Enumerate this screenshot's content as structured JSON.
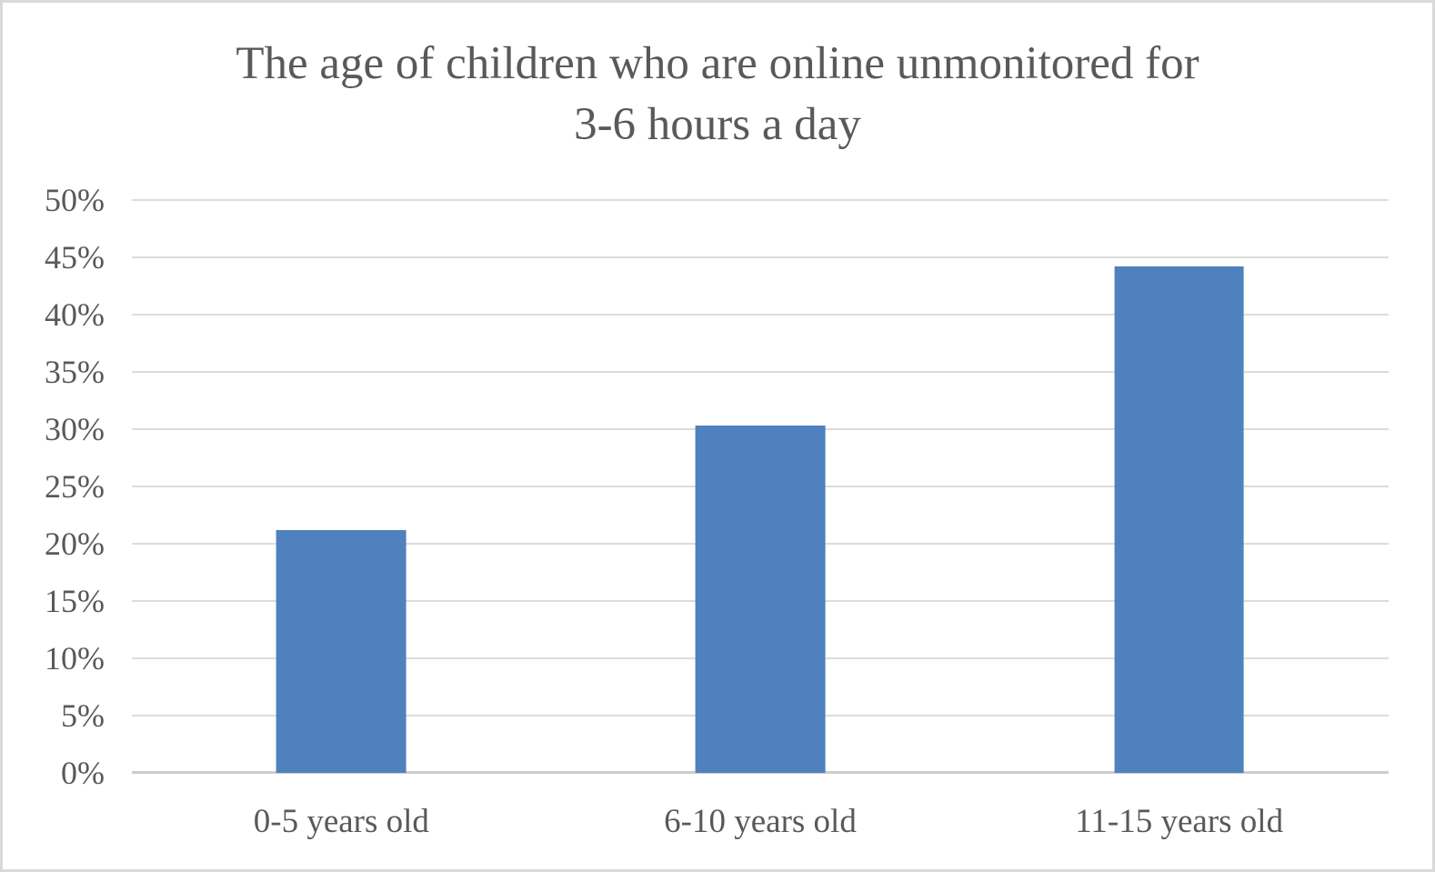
{
  "header": {
    "title_line1": "The age of children who are online unmonitored for",
    "title_line2": "3-6 hours a day"
  },
  "chart_data": {
    "type": "bar",
    "title": "The age of children who are online unmonitored for 3-6 hours a day",
    "categories": [
      "0-5 years old",
      "6-10 years old",
      "11-15 years old"
    ],
    "values": [
      21.2,
      30.3,
      44.2
    ],
    "xlabel": "",
    "ylabel": "",
    "ylim": [
      0,
      50
    ],
    "ytick_step": 5,
    "ytick_format": "{v}%",
    "ytick_labels": [
      "0%",
      "5%",
      "10%",
      "15%",
      "20%",
      "25%",
      "30%",
      "35%",
      "40%",
      "45%",
      "50%"
    ],
    "grid": true,
    "legend_position": "none",
    "colors": {
      "bar": "#4E81BD",
      "gridline": "#DCDCDC",
      "baseline": "#CCCCCC",
      "text": "#595959",
      "frame_border": "#D9D9D9",
      "background": "#FFFFFF"
    }
  }
}
